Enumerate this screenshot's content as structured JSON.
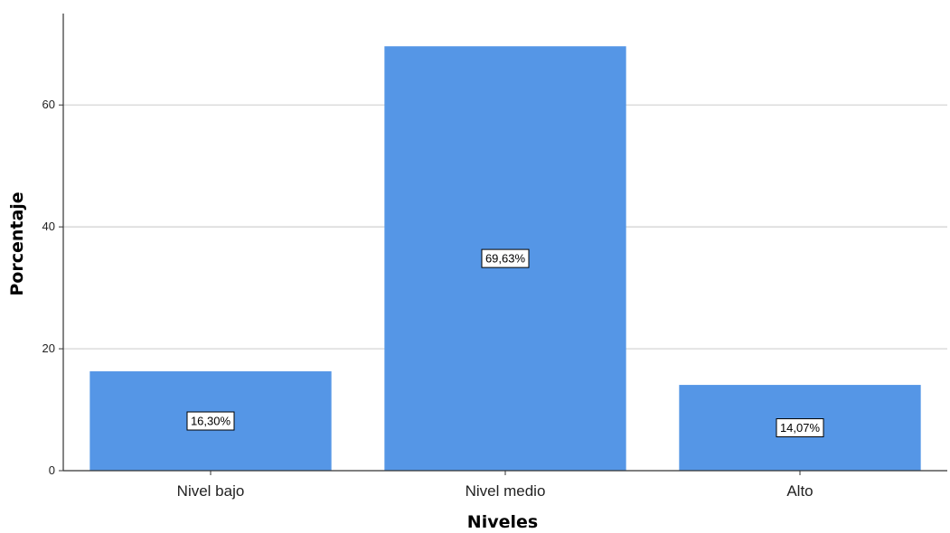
{
  "chart_data": {
    "type": "bar",
    "categories": [
      "Nivel bajo",
      "Nivel medio",
      "Alto"
    ],
    "values": [
      16.3,
      69.63,
      14.07
    ],
    "data_labels": [
      "16,30%",
      "69,63%",
      "14,07%"
    ],
    "title": "",
    "xlabel": "Niveles",
    "ylabel": "Porcentaje",
    "ylim": [
      0,
      75
    ],
    "yticks": [
      0,
      20,
      40,
      60
    ],
    "ytick_labels": [
      "0",
      "20",
      "40",
      "60"
    ],
    "grid": true,
    "colors": {
      "bar": "#5596e6",
      "grid": "#d0d0d0",
      "axis": "#333333"
    }
  }
}
